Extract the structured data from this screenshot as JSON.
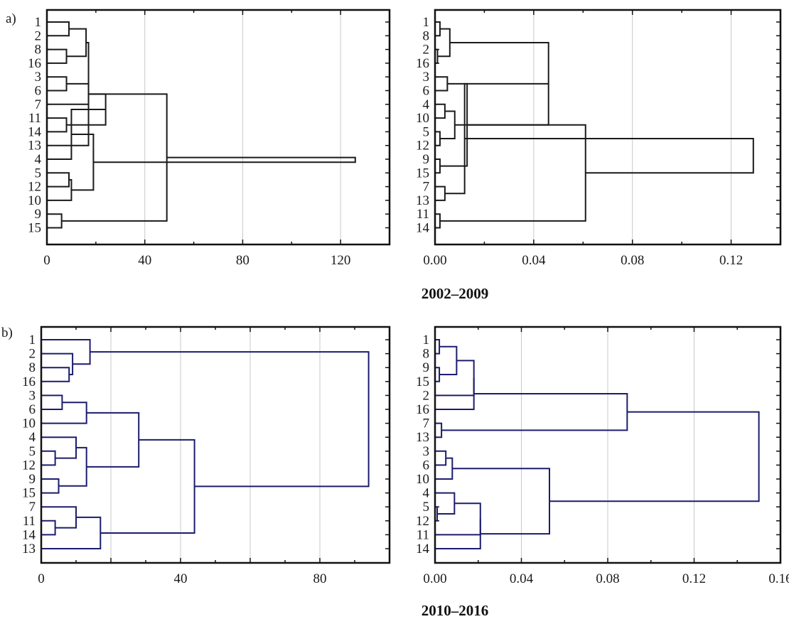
{
  "panel_labels": [
    "a)",
    "b)"
  ],
  "periods": [
    "2002–2009",
    "2010–2016"
  ],
  "link_colors": {
    "a": "#1a1a1a",
    "b": "#1c1c6e"
  },
  "chart_data": [
    {
      "type": "dendrogram",
      "panel": "a",
      "period": "2002–2009",
      "xlim": [
        0,
        140
      ],
      "xticks": [
        0,
        40,
        80,
        120
      ],
      "xtick_labels": [
        "0",
        "40",
        "80",
        "120"
      ],
      "leaves": [
        "1",
        "2",
        "8",
        "16",
        "3",
        "6",
        "7",
        "11",
        "14",
        "13",
        "4",
        "5",
        "12",
        "10",
        "9",
        "15"
      ],
      "merges": [
        [
          "1",
          "2",
          9
        ],
        [
          "8",
          "16",
          8
        ],
        [
          "c1",
          "c2",
          16
        ],
        [
          "3",
          "6",
          8
        ],
        [
          "11",
          "14",
          8
        ],
        [
          "7",
          "c4",
          17
        ],
        [
          "c3",
          "13",
          17
        ],
        [
          "c5",
          "c6",
          24
        ],
        [
          "5",
          "12",
          9
        ],
        [
          "4",
          "c8",
          10
        ],
        [
          "c9",
          "10",
          10
        ],
        [
          "9",
          "15",
          6
        ],
        [
          "c10",
          "c11",
          19
        ],
        [
          "c7",
          "c12",
          49
        ],
        [
          "c13",
          "c14",
          126
        ]
      ]
    },
    {
      "type": "dendrogram",
      "panel": "a",
      "period": "2002–2009",
      "xlim": [
        0,
        0.14
      ],
      "xticks": [
        0,
        0.04,
        0.08,
        0.12
      ],
      "xtick_labels": [
        "0.00",
        "0.04",
        "0.08",
        "0.12"
      ],
      "leaves": [
        "1",
        "8",
        "2",
        "16",
        "3",
        "6",
        "4",
        "10",
        "5",
        "12",
        "9",
        "15",
        "7",
        "13",
        "11",
        "14"
      ],
      "merges": [
        [
          "1",
          "8",
          0.002
        ],
        [
          "2",
          "16",
          0.001
        ],
        [
          "c1",
          "c2",
          0.006
        ],
        [
          "3",
          "6",
          0.005
        ],
        [
          "4",
          "10",
          0.004
        ],
        [
          "5",
          "12",
          0.002
        ],
        [
          "9",
          "15",
          0.002
        ],
        [
          "c5",
          "c6",
          0.008
        ],
        [
          "c4",
          "c7",
          0.013
        ],
        [
          "c3",
          "c8",
          0.046
        ],
        [
          "7",
          "13",
          0.004
        ],
        [
          "11",
          "14",
          0.002
        ],
        [
          "c10",
          "c11",
          0.012
        ],
        [
          "c9",
          "c12",
          0.061
        ],
        [
          "c13",
          "c14",
          0.129
        ]
      ]
    },
    {
      "type": "dendrogram",
      "panel": "b",
      "period": "2010–2016",
      "xlim": [
        0,
        100
      ],
      "xticks": [
        0,
        20,
        40,
        60,
        80,
        100
      ],
      "xtick_labels": [
        "0",
        "",
        "40",
        "",
        "80",
        ""
      ],
      "leaves": [
        "1",
        "2",
        "8",
        "16",
        "3",
        "6",
        "10",
        "4",
        "5",
        "12",
        "9",
        "15",
        "7",
        "11",
        "14",
        "13"
      ],
      "merges": [
        [
          "8",
          "16",
          8
        ],
        [
          "2",
          "c1",
          9
        ],
        [
          "1",
          "c2",
          14
        ],
        [
          "3",
          "6",
          6
        ],
        [
          "c4",
          "10",
          13
        ],
        [
          "5",
          "12",
          4
        ],
        [
          "4",
          "c6",
          10
        ],
        [
          "9",
          "15",
          5
        ],
        [
          "c7",
          "c8",
          13
        ],
        [
          "c5",
          "c9",
          28
        ],
        [
          "11",
          "14",
          4
        ],
        [
          "7",
          "c11",
          10
        ],
        [
          "c12",
          "13",
          17
        ],
        [
          "c10",
          "c13",
          44
        ],
        [
          "c3",
          "c14",
          94
        ]
      ]
    },
    {
      "type": "dendrogram",
      "panel": "b",
      "period": "2010–2016",
      "xlim": [
        0,
        0.16
      ],
      "xticks": [
        0,
        0.04,
        0.08,
        0.12,
        0.16
      ],
      "xtick_labels": [
        "0.00",
        "0.04",
        "0.08",
        "0.12",
        "0.16"
      ],
      "leaves": [
        "1",
        "8",
        "9",
        "15",
        "2",
        "16",
        "7",
        "13",
        "3",
        "6",
        "10",
        "4",
        "5",
        "12",
        "11",
        "14"
      ],
      "merges": [
        [
          "1",
          "8",
          0.002
        ],
        [
          "9",
          "15",
          0.002
        ],
        [
          "c1",
          "c2",
          0.01
        ],
        [
          "c3",
          "2",
          0.018
        ],
        [
          "c4",
          "16",
          0.018
        ],
        [
          "7",
          "13",
          0.003
        ],
        [
          "c5",
          "c6",
          0.089
        ],
        [
          "3",
          "6",
          0.005
        ],
        [
          "c8",
          "10",
          0.008
        ],
        [
          "5",
          "12",
          0.001
        ],
        [
          "4",
          "c10",
          0.009
        ],
        [
          "c11",
          "11",
          0.021
        ],
        [
          "c12",
          "14",
          0.021
        ],
        [
          "c9",
          "c13",
          0.053
        ],
        [
          "c7",
          "c14",
          0.15
        ]
      ]
    }
  ]
}
